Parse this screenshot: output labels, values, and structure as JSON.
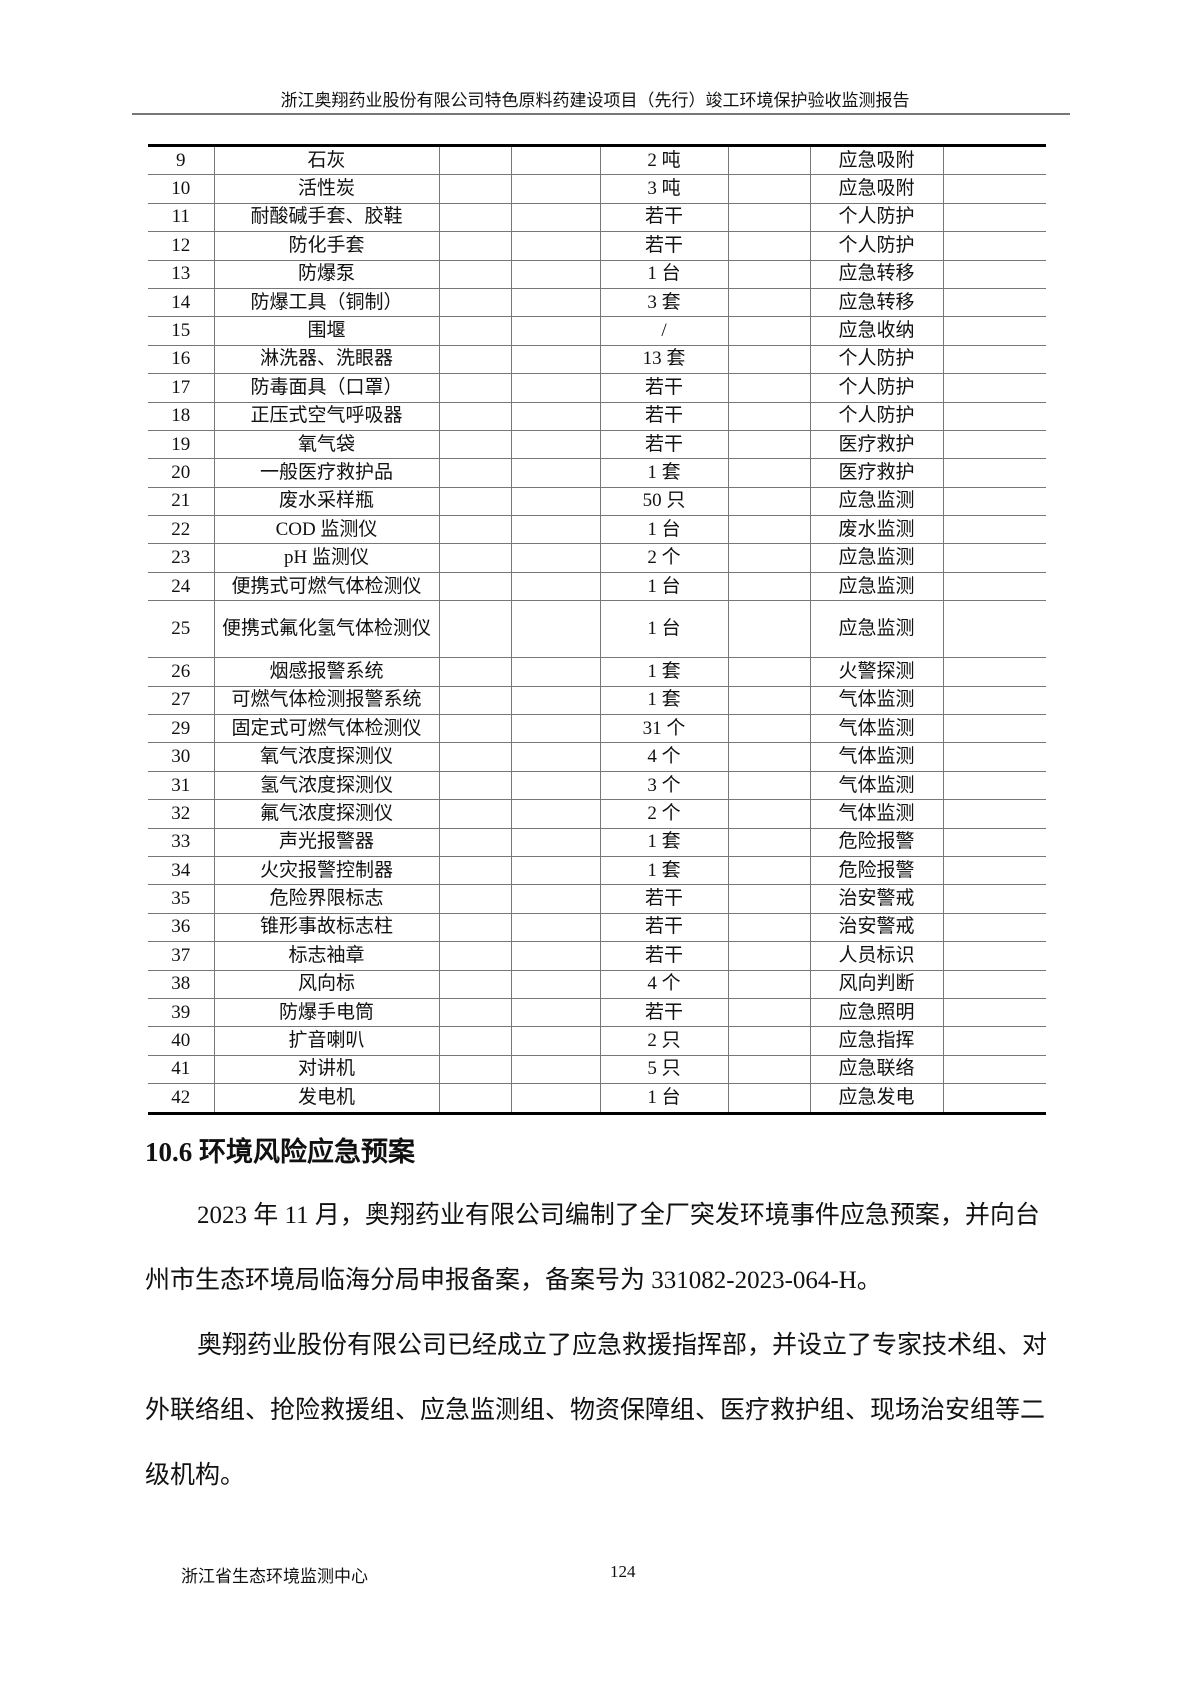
{
  "header": {
    "title": "浙江奥翔药业股份有限公司特色原料药建设项目（先行）竣工环境保护验收监测报告"
  },
  "table": {
    "rows": [
      [
        "9",
        "石灰",
        "",
        "",
        "2 吨",
        "",
        "应急吸附",
        ""
      ],
      [
        "10",
        "活性炭",
        "",
        "",
        "3 吨",
        "",
        "应急吸附",
        ""
      ],
      [
        "11",
        "耐酸碱手套、胶鞋",
        "",
        "",
        "若干",
        "",
        "个人防护",
        ""
      ],
      [
        "12",
        "防化手套",
        "",
        "",
        "若干",
        "",
        "个人防护",
        ""
      ],
      [
        "13",
        "防爆泵",
        "",
        "",
        "1 台",
        "",
        "应急转移",
        ""
      ],
      [
        "14",
        "防爆工具（铜制）",
        "",
        "",
        "3 套",
        "",
        "应急转移",
        ""
      ],
      [
        "15",
        "围堰",
        "",
        "",
        "/",
        "",
        "应急收纳",
        ""
      ],
      [
        "16",
        "淋洗器、洗眼器",
        "",
        "",
        "13 套",
        "",
        "个人防护",
        ""
      ],
      [
        "17",
        "防毒面具（口罩）",
        "",
        "",
        "若干",
        "",
        "个人防护",
        ""
      ],
      [
        "18",
        "正压式空气呼吸器",
        "",
        "",
        "若干",
        "",
        "个人防护",
        ""
      ],
      [
        "19",
        "氧气袋",
        "",
        "",
        "若干",
        "",
        "医疗救护",
        ""
      ],
      [
        "20",
        "一般医疗救护品",
        "",
        "",
        "1 套",
        "",
        "医疗救护",
        ""
      ],
      [
        "21",
        "废水采样瓶",
        "",
        "",
        "50 只",
        "",
        "应急监测",
        ""
      ],
      [
        "22",
        "COD 监测仪",
        "",
        "",
        "1 台",
        "",
        "废水监测",
        ""
      ],
      [
        "23",
        "pH 监测仪",
        "",
        "",
        "2 个",
        "",
        "应急监测",
        ""
      ],
      [
        "24",
        "便携式可燃气体检测仪",
        "",
        "",
        "1 台",
        "",
        "应急监测",
        ""
      ],
      [
        "25",
        "便携式氟化氢气体检测仪",
        "",
        "",
        "1 台",
        "",
        "应急监测",
        ""
      ],
      [
        "26",
        "烟感报警系统",
        "",
        "",
        "1 套",
        "",
        "火警探测",
        ""
      ],
      [
        "27",
        "可燃气体检测报警系统",
        "",
        "",
        "1 套",
        "",
        "气体监测",
        ""
      ],
      [
        "29",
        "固定式可燃气体检测仪",
        "",
        "",
        "31 个",
        "",
        "气体监测",
        ""
      ],
      [
        "30",
        "氧气浓度探测仪",
        "",
        "",
        "4 个",
        "",
        "气体监测",
        ""
      ],
      [
        "31",
        "氢气浓度探测仪",
        "",
        "",
        "3 个",
        "",
        "气体监测",
        ""
      ],
      [
        "32",
        "氟气浓度探测仪",
        "",
        "",
        "2 个",
        "",
        "气体监测",
        ""
      ],
      [
        "33",
        "声光报警器",
        "",
        "",
        "1 套",
        "",
        "危险报警",
        ""
      ],
      [
        "34",
        "火灾报警控制器",
        "",
        "",
        "1 套",
        "",
        "危险报警",
        ""
      ],
      [
        "35",
        "危险界限标志",
        "",
        "",
        "若干",
        "",
        "治安警戒",
        ""
      ],
      [
        "36",
        "锥形事故标志柱",
        "",
        "",
        "若干",
        "",
        "治安警戒",
        ""
      ],
      [
        "37",
        "标志袖章",
        "",
        "",
        "若干",
        "",
        "人员标识",
        ""
      ],
      [
        "38",
        "风向标",
        "",
        "",
        "4 个",
        "",
        "风向判断",
        ""
      ],
      [
        "39",
        "防爆手电筒",
        "",
        "",
        "若干",
        "",
        "应急照明",
        ""
      ],
      [
        "40",
        "扩音喇叭",
        "",
        "",
        "2 只",
        "",
        "应急指挥",
        ""
      ],
      [
        "41",
        "对讲机",
        "",
        "",
        "5 只",
        "",
        "应急联络",
        ""
      ],
      [
        "42",
        "发电机",
        "",
        "",
        "1 台",
        "",
        "应急发电",
        ""
      ]
    ]
  },
  "section": {
    "heading": "10.6 环境风险应急预案",
    "paragraph1": "2023 年 11 月，奥翔药业有限公司编制了全厂突发环境事件应急预案，并向台州市生态环境局临海分局申报备案，备案号为 331082-2023-064-H。",
    "paragraph2": "奥翔药业股份有限公司已经成立了应急救援指挥部，并设立了专家技术组、对外联络组、抢险救援组、应急监测组、物资保障组、医疗救护组、现场治安组等二级机构。"
  },
  "footer": {
    "org": "浙江省生态环境监测中心",
    "page": "124"
  }
}
